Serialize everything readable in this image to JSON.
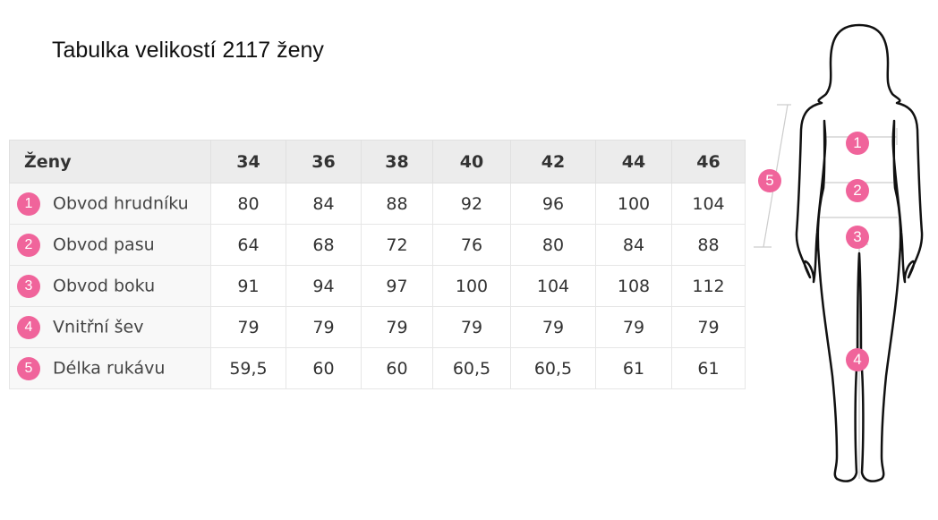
{
  "title": "Tabulka velikostí 2117 ženy",
  "table": {
    "header": [
      "Ženy",
      "34",
      "36",
      "38",
      "40",
      "42",
      "44",
      "46"
    ],
    "rows": [
      {
        "num": "1",
        "label": "Obvod hrudníku",
        "values": [
          "80",
          "84",
          "88",
          "92",
          "96",
          "100",
          "104"
        ]
      },
      {
        "num": "2",
        "label": "Obvod pasu",
        "values": [
          "64",
          "68",
          "72",
          "76",
          "80",
          "84",
          "88"
        ]
      },
      {
        "num": "3",
        "label": "Obvod boku",
        "values": [
          "91",
          "94",
          "97",
          "100",
          "104",
          "108",
          "112"
        ]
      },
      {
        "num": "4",
        "label": "Vnitřní šev",
        "values": [
          "79",
          "79",
          "79",
          "79",
          "79",
          "79",
          "79"
        ]
      },
      {
        "num": "5",
        "label": "Délka rukávu",
        "values": [
          "59,5",
          "60",
          "60",
          "60,5",
          "60,5",
          "61",
          "61"
        ]
      }
    ]
  },
  "figure": {
    "badges": [
      "1",
      "2",
      "3",
      "4",
      "5"
    ]
  },
  "colors": {
    "accent": "#f0649b",
    "header_bg": "#ececec"
  }
}
